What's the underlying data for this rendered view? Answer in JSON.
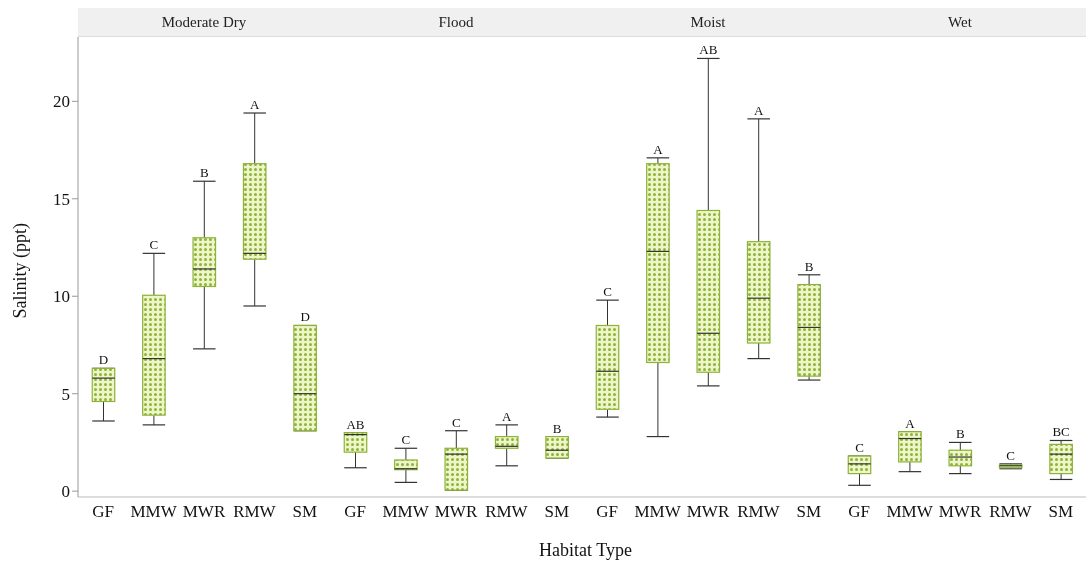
{
  "chart_data": [
    {
      "type": "box",
      "title": "Moderate Dry",
      "ylabel": "Salinity (ppt)",
      "categories": [
        "GF",
        "MMW",
        "MWR",
        "RMW",
        "SM"
      ],
      "color": "#8db33a",
      "ylim": [
        -0.3,
        23.3
      ],
      "yticks": [
        0,
        5,
        10,
        15,
        20
      ],
      "grid": false,
      "boxes": [
        {
          "low": 3.6,
          "q1": 4.6,
          "median": 5.8,
          "q3": 6.3,
          "high": 6.3
        },
        {
          "low": 3.4,
          "q1": 3.9,
          "median": 6.8,
          "q3": 10.05,
          "high": 12.2
        },
        {
          "low": 7.3,
          "q1": 10.5,
          "median": 11.4,
          "q3": 13.0,
          "high": 15.9
        },
        {
          "low": 9.5,
          "q1": 11.9,
          "median": 12.2,
          "q3": 16.8,
          "high": 19.4
        },
        {
          "low": 3.1,
          "q1": 3.1,
          "median": 5.0,
          "q3": 8.5,
          "high": 8.5
        }
      ],
      "annotations": [
        {
          "text": "D",
          "x": "GF",
          "y": 6.3
        },
        {
          "text": "C",
          "x": "MMW",
          "y": 12.2
        },
        {
          "text": "B",
          "x": "MWR",
          "y": 15.9
        },
        {
          "text": "A",
          "x": "RMW",
          "y": 19.4
        },
        {
          "text": "D",
          "x": "SM",
          "y": 8.5
        }
      ]
    },
    {
      "type": "box",
      "title": "Flood",
      "xlabel": "Habitat Type",
      "categories": [
        "GF",
        "MMW",
        "MWR",
        "RMW",
        "SM"
      ],
      "color": "#8db33a",
      "ylim": [
        -0.3,
        23.3
      ],
      "yticks": [
        0,
        5,
        10,
        15,
        20
      ],
      "grid": false,
      "tick_labels": "x",
      "boxes": [
        {
          "low": 1.2,
          "q1": 2.0,
          "median": 2.9,
          "q3": 3.0,
          "high": 3.0
        },
        {
          "low": 0.45,
          "q1": 1.1,
          "median": 1.15,
          "q3": 1.6,
          "high": 2.2
        },
        {
          "low": 0.05,
          "q1": 0.05,
          "median": 1.9,
          "q3": 2.2,
          "high": 3.1
        },
        {
          "low": 1.3,
          "q1": 2.2,
          "median": 2.3,
          "q3": 2.8,
          "high": 3.4
        },
        {
          "low": 1.7,
          "q1": 1.7,
          "median": 2.1,
          "q3": 2.8,
          "high": 2.8
        }
      ],
      "annotations": [
        {
          "text": "AB",
          "x": "GF",
          "y": 3.0
        },
        {
          "text": "C",
          "x": "MMW",
          "y": 2.2
        },
        {
          "text": "C",
          "x": "MWR",
          "y": 3.1
        },
        {
          "text": "A",
          "x": "RMW",
          "y": 3.4
        },
        {
          "text": "B",
          "x": "SM",
          "y": 2.8
        }
      ]
    },
    {
      "type": "box",
      "title": "Moist",
      "categories": [
        "GF",
        "MMW",
        "MWR",
        "RMW",
        "SM"
      ],
      "color": "#8db33a",
      "ylim": [
        -0.3,
        23.3
      ],
      "yticks": [
        0,
        5,
        10,
        15,
        20
      ],
      "grid": false,
      "tick_labels": "x",
      "boxes": [
        {
          "low": 3.8,
          "q1": 4.2,
          "median": 6.15,
          "q3": 8.5,
          "high": 9.8
        },
        {
          "low": 2.8,
          "q1": 6.6,
          "median": 12.3,
          "q3": 16.8,
          "high": 17.1
        },
        {
          "low": 5.4,
          "q1": 6.1,
          "median": 8.1,
          "q3": 14.4,
          "high": 22.2
        },
        {
          "low": 6.8,
          "q1": 7.6,
          "median": 9.9,
          "q3": 12.8,
          "high": 19.1
        },
        {
          "low": 5.7,
          "q1": 5.9,
          "median": 8.4,
          "q3": 10.6,
          "high": 11.1
        }
      ],
      "annotations": [
        {
          "text": "C",
          "x": "GF",
          "y": 9.8
        },
        {
          "text": "A",
          "x": "MMW",
          "y": 17.1
        },
        {
          "text": "AB",
          "x": "MWR",
          "y": 22.2
        },
        {
          "text": "A",
          "x": "RMW",
          "y": 19.1
        },
        {
          "text": "B",
          "x": "SM",
          "y": 11.1
        }
      ]
    },
    {
      "type": "box",
      "title": "Wet",
      "categories": [
        "GF",
        "MMW",
        "MWR",
        "RMW",
        "SM"
      ],
      "color": "#8db33a",
      "ylim": [
        -0.3,
        23.3
      ],
      "yticks": [
        0,
        5,
        10,
        15,
        20
      ],
      "grid": false,
      "tick_labels": "x",
      "boxes": [
        {
          "low": 0.3,
          "q1": 0.9,
          "median": 1.4,
          "q3": 1.8,
          "high": 1.8
        },
        {
          "low": 1.0,
          "q1": 1.5,
          "median": 2.7,
          "q3": 3.05,
          "high": 3.05
        },
        {
          "low": 0.9,
          "q1": 1.3,
          "median": 1.75,
          "q3": 2.1,
          "high": 2.5
        },
        {
          "low": 1.15,
          "q1": 1.2,
          "median": 1.3,
          "q3": 1.35,
          "high": 1.4
        },
        {
          "low": 0.6,
          "q1": 0.9,
          "median": 1.9,
          "q3": 2.4,
          "high": 2.6
        }
      ],
      "annotations": [
        {
          "text": "C",
          "x": "GF",
          "y": 1.8
        },
        {
          "text": "A",
          "x": "MMW",
          "y": 3.05
        },
        {
          "text": "B",
          "x": "MWR",
          "y": 2.5
        },
        {
          "text": "C",
          "x": "RMW",
          "y": 1.4
        },
        {
          "text": "BC",
          "x": "SM",
          "y": 2.6
        }
      ]
    }
  ]
}
